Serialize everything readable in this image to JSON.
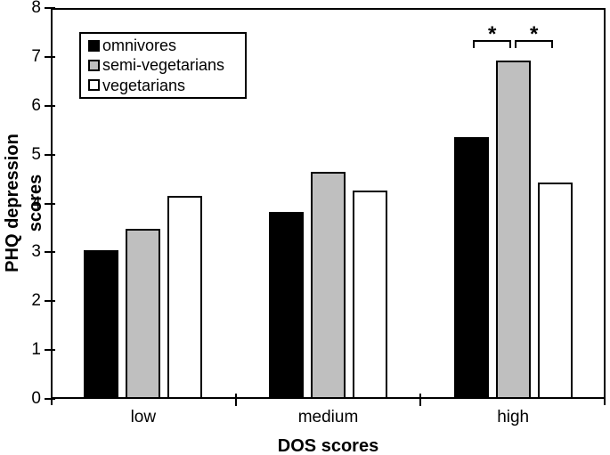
{
  "chart_data": {
    "type": "bar",
    "title": "",
    "ylabel": "PHQ depression scores",
    "xlabel": "DOS scores",
    "categories": [
      "low",
      "medium",
      "high"
    ],
    "series": [
      {
        "name": "omnivores",
        "color": "#000000",
        "values": [
          3.05,
          3.82,
          5.35
        ]
      },
      {
        "name": "semi-vegetarians",
        "color": "#bfbfbf",
        "values": [
          3.48,
          4.64,
          6.92
        ]
      },
      {
        "name": "vegetarians",
        "color": "#ffffff",
        "values": [
          4.16,
          4.26,
          4.43
        ]
      }
    ],
    "ylim": [
      0,
      8
    ],
    "ytick_step": 1,
    "ytick_labels": [
      "0",
      "1",
      "2",
      "3",
      "4",
      "5",
      "6",
      "7",
      "8"
    ],
    "grid": false,
    "legend_position": "top-left",
    "bar_border_color": "#000000",
    "background_color": "#ffffff",
    "annotations": [
      {
        "type": "significance-bracket",
        "category": "high",
        "between": [
          "omnivores",
          "semi-vegetarians"
        ],
        "label": "*"
      },
      {
        "type": "significance-bracket",
        "category": "high",
        "between": [
          "semi-vegetarians",
          "vegetarians"
        ],
        "label": "*"
      }
    ]
  }
}
